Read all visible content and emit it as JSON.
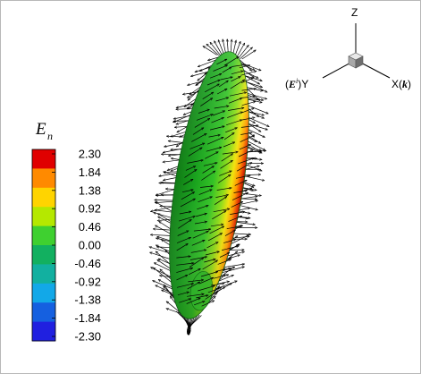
{
  "legend": {
    "title_symbol": "E",
    "title_subscript": "n",
    "tick_labels": [
      "2.30",
      "1.84",
      "1.38",
      "0.92",
      "0.46",
      "0.00",
      "-0.46",
      "-0.92",
      "-1.38",
      "-1.84",
      "-2.30"
    ],
    "range": [
      -2.3,
      2.3
    ],
    "colormap": [
      "#e00000",
      "#ff8a00",
      "#ffd400",
      "#b5e800",
      "#3fd030",
      "#12b060",
      "#12b0a0",
      "#12a8e8",
      "#1560e0",
      "#2020e0"
    ]
  },
  "axes_triad": {
    "z_label": "Z",
    "x_label": "X(",
    "x_label_symbol": "k",
    "x_label_close": ")",
    "y_label_open": "(",
    "y_label_symbol": "E",
    "y_label_superscript": "i",
    "y_label_close": ")Y"
  },
  "colors": {
    "arrow": "#000000",
    "surface_dark_edge": "#0f6b12",
    "surface_hot_edge": "#cc1400"
  },
  "body_shape": "prolate-spheroid"
}
